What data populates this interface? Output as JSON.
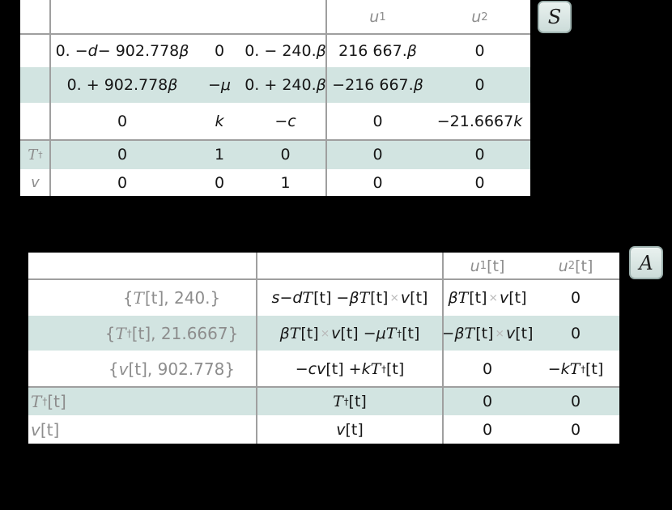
{
  "colors": {
    "background": "#000000",
    "table_background": "#ffffff",
    "stripe_band": "#d2e4e1",
    "grid_line": "#9f9f9f",
    "muted_text": "#8d8d8d",
    "body_text": "#161616",
    "badge_background": "#d8e5e2",
    "badge_border": "#9cb0ad"
  },
  "state_space_table": {
    "badge_label": "S",
    "input_headers": [
      "u₁",
      "u₂"
    ],
    "row_labels": [
      "",
      "",
      "",
      "𝒯†",
      "v"
    ],
    "rows": [
      [
        "0. − d − 902.778 β",
        "0",
        "0. − 240. β",
        "216 667. β",
        "0"
      ],
      [
        "0. + 902.778 β",
        "−μ",
        "0. + 240. β",
        "−216 667. β",
        "0"
      ],
      [
        "0",
        "k",
        "−c",
        "0",
        "−21.6667 k"
      ],
      [
        "0",
        "1",
        "0",
        "0",
        "0"
      ],
      [
        "0",
        "0",
        "1",
        "0",
        "0"
      ]
    ]
  },
  "affine_table": {
    "badge_label": "A",
    "input_headers": [
      "u₁[t]",
      "u₂[t]"
    ],
    "state_column": [
      "{𝒯[t], 240.}",
      "{𝒯†[t], 21.6667}",
      "{v[t], 902.778}",
      "𝒯†[t]",
      "v[t]"
    ],
    "rows": [
      [
        "s − d 𝒯[t] − β 𝒯[t]×v[t]",
        "β 𝒯[t]×v[t]",
        "0"
      ],
      [
        "β 𝒯[t]×v[t] − μ 𝒯†[t]",
        "−β 𝒯[t]×v[t]",
        "0"
      ],
      [
        "−c v[t] + k 𝒯†[t]",
        "0",
        "−k 𝒯†[t]"
      ],
      [
        "𝒯†[t]",
        "0",
        "0"
      ],
      [
        "v[t]",
        "0",
        "0"
      ]
    ]
  }
}
